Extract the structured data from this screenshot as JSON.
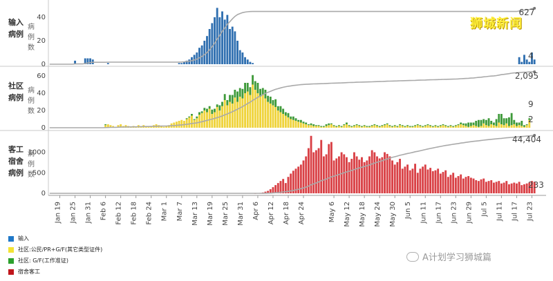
{
  "brand": "狮城新闻",
  "watermark": "A计划学习狮城篇",
  "panels": [
    {
      "id": "import",
      "label": [
        "输入",
        "病例"
      ],
      "sublabel": [
        "病",
        "例",
        "数"
      ],
      "ticks": [
        0,
        20,
        40
      ],
      "ymax": 50,
      "series": [
        {
          "name": "输入",
          "color": "#2f6fb0"
        }
      ],
      "total": "627",
      "last": [
        "4"
      ]
    },
    {
      "id": "community",
      "label": [
        "社区",
        "病例"
      ],
      "sublabel": [
        "病",
        "例",
        "数"
      ],
      "ticks": [
        0,
        20,
        40,
        60
      ],
      "ymax": 68,
      "series": [
        {
          "name": "社区:公民/PR+G/F(其它类型证件)",
          "color": "#efd33a"
        },
        {
          "name": "社区: G/F(工作准证)",
          "color": "#3f9a3a"
        }
      ],
      "total": "2,095",
      "last": [
        "9",
        "2"
      ]
    },
    {
      "id": "dorm",
      "label": [
        "客工",
        "宿舍",
        "病例"
      ],
      "sublabel": [
        "病",
        "例",
        "数"
      ],
      "ticks": [
        0,
        500,
        1000
      ],
      "ymax": 1480,
      "series": [
        {
          "name": "宿舍客工",
          "color": "#d94045"
        }
      ],
      "total": "44,404",
      "last": [
        "233"
      ]
    }
  ],
  "legend": [
    {
      "label": "输入",
      "color": "#1f78c8"
    },
    {
      "label": "社区:公民/PR+G/F(其它类型证件)",
      "color": "#f3e335"
    },
    {
      "label": "社区: G/F(工作准证)",
      "color": "#2ca02c"
    },
    {
      "label": "宿舍客工",
      "color": "#c0161c"
    }
  ],
  "chart_data": {
    "type": "bar",
    "title": "",
    "xlabel": "",
    "start_date": "2020-01-15",
    "x_tick_labels": [
      "Jan 19",
      "Jan 25",
      "Jan 31",
      "Feb 6",
      "Feb 12",
      "Feb 18",
      "Feb 24",
      "Mar 1",
      "Mar 7",
      "Mar 13",
      "Mar 19",
      "Mar 25",
      "Mar 31",
      "Apr 6",
      "Apr 12",
      "Apr 18",
      "Apr 24",
      "May 6",
      "May 12",
      "May 18",
      "May 24",
      "May 30",
      "Jun 5",
      "Jun 11",
      "Jun 17",
      "Jun 23",
      "Jun 29",
      "Jul 5",
      "Jul 11",
      "Jul 17",
      "Jul 23"
    ],
    "x_tick_day_offsets": [
      4,
      10,
      16,
      22,
      28,
      34,
      40,
      46,
      52,
      58,
      64,
      70,
      76,
      82,
      88,
      94,
      100,
      112,
      118,
      124,
      130,
      136,
      142,
      148,
      154,
      160,
      166,
      172,
      178,
      184,
      190
    ],
    "series": [
      {
        "name": "输入",
        "panel": "import",
        "values": [
          0,
          0,
          0,
          0,
          0,
          0,
          0,
          0,
          0,
          0,
          3,
          0,
          0,
          0,
          5,
          5,
          5,
          4,
          0,
          0,
          0,
          0,
          0,
          1,
          0,
          0,
          0,
          0,
          0,
          0,
          0,
          0,
          0,
          0,
          0,
          0,
          0,
          0,
          0,
          0,
          0,
          0,
          0,
          0,
          0,
          0,
          0,
          0,
          0,
          0,
          0,
          1,
          1,
          2,
          3,
          4,
          6,
          8,
          10,
          14,
          16,
          20,
          24,
          30,
          35,
          40,
          48,
          40,
          45,
          38,
          42,
          30,
          32,
          28,
          20,
          12,
          10,
          6,
          4,
          2,
          1,
          0,
          0,
          0,
          0,
          0,
          0,
          0,
          0,
          0,
          0,
          0,
          0,
          0,
          0,
          0,
          0,
          0,
          0,
          0,
          0,
          0,
          0,
          0,
          0,
          0,
          0,
          0,
          0,
          0,
          0,
          0,
          0,
          0,
          0,
          0,
          0,
          0,
          0,
          0,
          0,
          0,
          0,
          0,
          0,
          0,
          0,
          0,
          0,
          0,
          0,
          0,
          0,
          0,
          0,
          0,
          0,
          0,
          0,
          0,
          0,
          0,
          0,
          0,
          0,
          0,
          0,
          0,
          0,
          0,
          0,
          0,
          0,
          0,
          0,
          0,
          0,
          0,
          0,
          0,
          0,
          0,
          0,
          0,
          0,
          0,
          0,
          0,
          0,
          0,
          0,
          0,
          0,
          0,
          0,
          0,
          0,
          0,
          0,
          0,
          0,
          0,
          0,
          0,
          0,
          6,
          2,
          8,
          4,
          2,
          10,
          4
        ]
      },
      {
        "name": "社区:公民/PR+G/F(其它类型证件)",
        "panel": "community",
        "values": [
          0,
          0,
          0,
          0,
          0,
          0,
          0,
          0,
          0,
          0,
          0,
          0,
          0,
          0,
          0,
          0,
          0,
          0,
          0,
          0,
          0,
          0,
          3,
          4,
          3,
          2,
          1,
          3,
          4,
          2,
          3,
          2,
          1,
          2,
          1,
          3,
          2,
          3,
          2,
          1,
          2,
          3,
          4,
          3,
          2,
          1,
          2,
          3,
          5,
          6,
          7,
          8,
          9,
          8,
          10,
          12,
          14,
          9,
          11,
          15,
          17,
          20,
          18,
          22,
          16,
          18,
          24,
          20,
          25,
          32,
          26,
          30,
          28,
          35,
          30,
          36,
          34,
          40,
          42,
          38,
          50,
          44,
          40,
          36,
          38,
          34,
          30,
          28,
          26,
          24,
          20,
          18,
          16,
          14,
          12,
          10,
          9,
          8,
          7,
          6,
          5,
          4,
          3,
          3,
          2,
          2,
          2,
          1,
          1,
          2,
          3,
          4,
          2,
          1,
          2,
          1,
          3,
          4,
          2,
          1,
          2,
          3,
          2,
          1,
          2,
          1,
          1,
          2,
          3,
          2,
          1,
          2,
          3,
          4,
          2,
          1,
          2,
          1,
          3,
          2,
          1,
          2,
          1,
          1,
          2,
          3,
          2,
          1,
          2,
          3,
          2,
          1,
          2,
          1,
          2,
          3,
          2,
          1,
          2,
          1,
          2,
          3,
          4,
          3,
          2,
          1,
          2,
          3,
          2,
          1,
          2,
          5,
          3,
          2,
          4,
          3,
          2,
          6,
          4,
          3,
          5,
          2,
          3,
          4,
          2,
          3,
          2,
          1,
          3,
          9
        ]
      },
      {
        "name": "社区: G/F(工作准证)",
        "panel": "community",
        "values": [
          0,
          0,
          0,
          0,
          0,
          0,
          0,
          0,
          0,
          0,
          0,
          0,
          0,
          0,
          0,
          0,
          0,
          0,
          0,
          0,
          0,
          0,
          1,
          0,
          0,
          0,
          0,
          0,
          0,
          0,
          0,
          0,
          0,
          0,
          0,
          0,
          0,
          0,
          0,
          0,
          0,
          0,
          0,
          0,
          0,
          0,
          0,
          0,
          0,
          0,
          0,
          0,
          0,
          0,
          1,
          1,
          2,
          1,
          2,
          3,
          2,
          3,
          4,
          3,
          5,
          4,
          3,
          6,
          5,
          7,
          6,
          8,
          10,
          9,
          12,
          10,
          11,
          12,
          10,
          9,
          11,
          10,
          12,
          9,
          8,
          10,
          7,
          8,
          6,
          9,
          5,
          7,
          6,
          4,
          5,
          3,
          4,
          3,
          2,
          3,
          2,
          2,
          1,
          2,
          2,
          1,
          1,
          1,
          1,
          2,
          2,
          1,
          1,
          1,
          1,
          1,
          1,
          2,
          1,
          1,
          1,
          1,
          1,
          1,
          1,
          1,
          1,
          1,
          1,
          1,
          1,
          1,
          1,
          1,
          1,
          1,
          1,
          1,
          1,
          1,
          1,
          1,
          1,
          1,
          1,
          1,
          1,
          1,
          1,
          1,
          1,
          1,
          1,
          1,
          1,
          1,
          1,
          1,
          1,
          1,
          1,
          1,
          2,
          2,
          3,
          5,
          4,
          3,
          6,
          8,
          7,
          5,
          6,
          9,
          4,
          3,
          8,
          10,
          12,
          8,
          6,
          10,
          14,
          5,
          4,
          3,
          6,
          2,
          1,
          2
        ]
      },
      {
        "name": "宿舍客工",
        "panel": "dorm",
        "values": [
          0,
          0,
          0,
          0,
          0,
          0,
          0,
          0,
          0,
          0,
          0,
          0,
          0,
          0,
          0,
          0,
          0,
          0,
          0,
          0,
          0,
          0,
          0,
          0,
          0,
          0,
          0,
          0,
          0,
          0,
          0,
          0,
          0,
          0,
          0,
          0,
          0,
          0,
          0,
          0,
          0,
          0,
          0,
          0,
          0,
          0,
          0,
          0,
          0,
          0,
          0,
          0,
          0,
          0,
          0,
          0,
          0,
          0,
          0,
          0,
          0,
          0,
          0,
          0,
          0,
          0,
          0,
          0,
          0,
          0,
          0,
          0,
          0,
          0,
          0,
          0,
          0,
          0,
          0,
          0,
          0,
          2,
          5,
          10,
          20,
          40,
          60,
          100,
          150,
          200,
          250,
          300,
          350,
          250,
          400,
          480,
          550,
          600,
          650,
          700,
          800,
          900,
          1100,
          1400,
          1000,
          1050,
          1100,
          1300,
          900,
          950,
          1200,
          1250,
          800,
          850,
          900,
          1000,
          950,
          880,
          760,
          840,
          1000,
          900,
          820,
          880,
          760,
          800,
          900,
          1050,
          1000,
          900,
          850,
          880,
          1000,
          960,
          900,
          800,
          700,
          760,
          840,
          600,
          650,
          700,
          560,
          600,
          720,
          500,
          600,
          650,
          700,
          580,
          620,
          540,
          560,
          600,
          480,
          520,
          560,
          400,
          450,
          500,
          380,
          420,
          460,
          360,
          400,
          420,
          380,
          360,
          320,
          300,
          340,
          360,
          280,
          300,
          320,
          260,
          280,
          300,
          240,
          260,
          300,
          220,
          240,
          260,
          240,
          280,
          200,
          220,
          240,
          260,
          300,
          280,
          260,
          240,
          220,
          200,
          180,
          220,
          240,
          260,
          220,
          200,
          233,
          233
        ]
      }
    ],
    "cumulative_totals": {
      "输入": "627",
      "社区": "2,095",
      "宿舍客工": "44,404"
    }
  }
}
